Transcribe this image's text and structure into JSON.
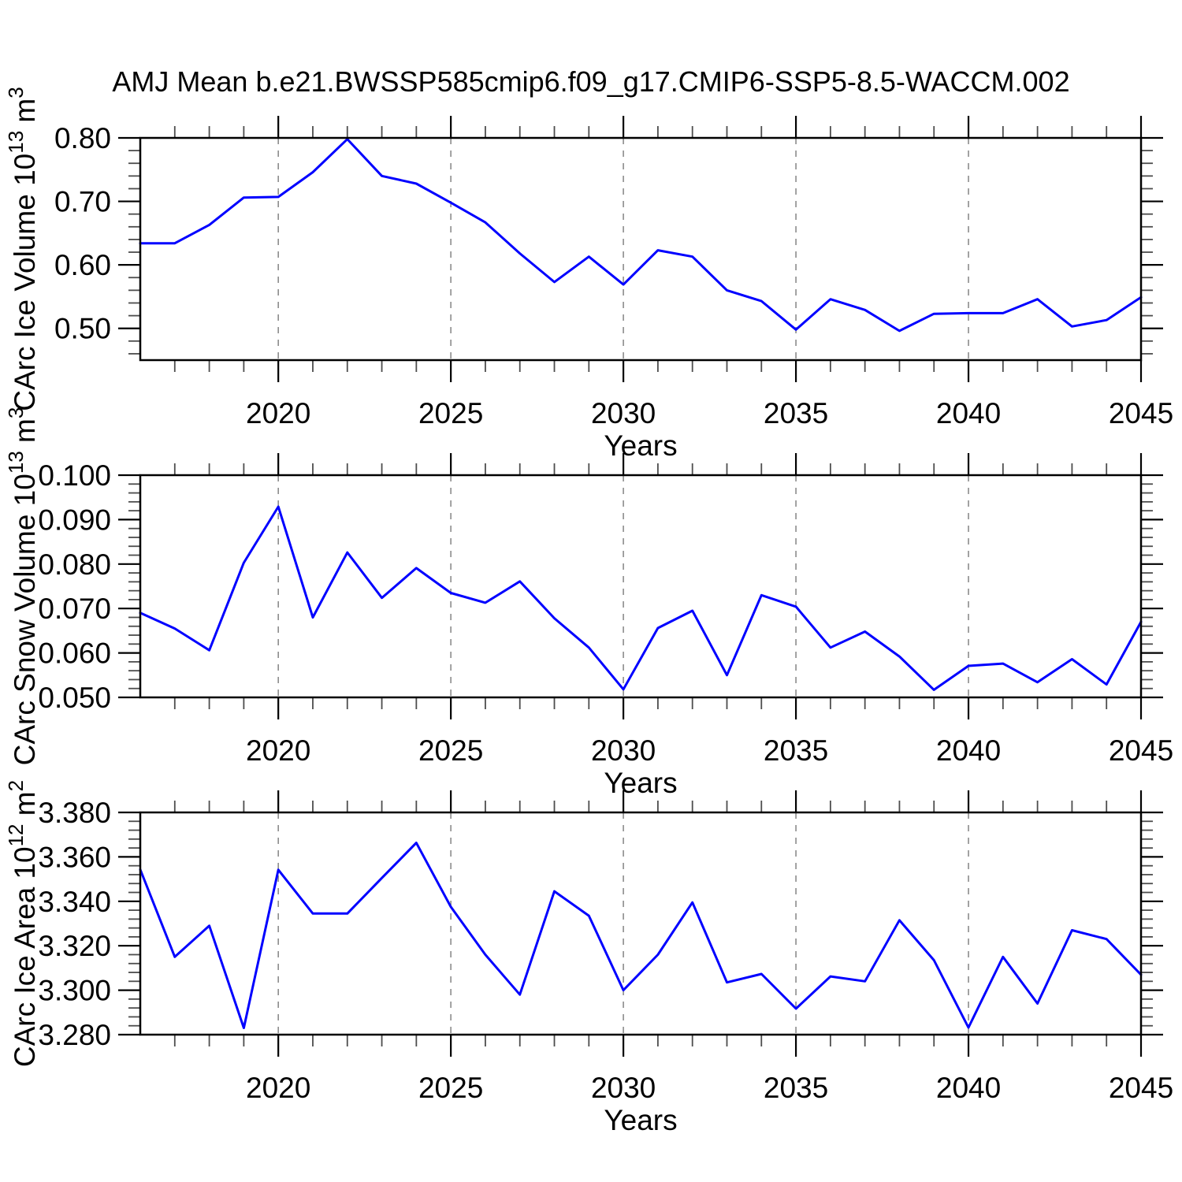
{
  "figure": {
    "title": "AMJ Mean b.e21.BWSSP585cmip6.f09_g17.CMIP6-SSP5-8.5-WACCM.002",
    "background_color": "#ffffff",
    "line_color": "#0000ff",
    "frame_color": "#000000",
    "major_tick_color": "#000000",
    "minor_tick_color": "#4d4d4d",
    "grid_color": "#8c8c8c",
    "text_color": "#000000"
  },
  "years": [
    2016,
    2017,
    2018,
    2019,
    2020,
    2021,
    2022,
    2023,
    2024,
    2025,
    2026,
    2027,
    2028,
    2029,
    2030,
    2031,
    2032,
    2033,
    2034,
    2035,
    2036,
    2037,
    2038,
    2039,
    2040,
    2041,
    2042,
    2043,
    2044,
    2045
  ],
  "chart_data": [
    {
      "type": "line",
      "name": "carc-ice-volume",
      "ylabel": "CArc Ice Volume 10^13 m^3",
      "ylabel_parts": [
        {
          "t": "CArc Ice Volume 10"
        },
        {
          "t": "13",
          "sup": true
        },
        {
          "t": " m"
        },
        {
          "t": "3",
          "sup": true
        }
      ],
      "xlabel": "Years",
      "values": [
        0.634,
        0.634,
        0.663,
        0.706,
        0.707,
        0.746,
        0.798,
        0.74,
        0.728,
        0.698,
        0.667,
        0.618,
        0.573,
        0.613,
        0.569,
        0.623,
        0.613,
        0.56,
        0.543,
        0.498,
        0.546,
        0.529,
        0.496,
        0.523,
        0.524,
        0.524,
        0.546,
        0.503,
        0.513,
        0.549
      ],
      "xlim": [
        2016,
        2045
      ],
      "ylim": [
        0.45,
        0.8
      ],
      "y_major_step": 0.1,
      "y_minor_step": 0.02,
      "x_minor_step": 1,
      "grid_x": [
        2020,
        2025,
        2030,
        2035,
        2040
      ],
      "grid_dashed": true,
      "legend": "none",
      "ytick_labels": [
        {
          "v": 0.5,
          "t": "0.50"
        },
        {
          "v": 0.6,
          "t": "0.60"
        },
        {
          "v": 0.7,
          "t": "0.70"
        },
        {
          "v": 0.8,
          "t": "0.80"
        }
      ],
      "xtick_labels": [
        {
          "v": 2020,
          "t": "2020"
        },
        {
          "v": 2025,
          "t": "2025"
        },
        {
          "v": 2030,
          "t": "2030"
        },
        {
          "v": 2035,
          "t": "2035"
        },
        {
          "v": 2040,
          "t": "2040"
        },
        {
          "v": 2045,
          "t": "2045"
        }
      ]
    },
    {
      "type": "line",
      "name": "carc-snow-volume",
      "ylabel": "CArc Snow Volume 10^13 m^3",
      "ylabel_parts": [
        {
          "t": "CArc Snow Volume 10"
        },
        {
          "t": "13",
          "sup": true
        },
        {
          "t": " m"
        },
        {
          "t": "3",
          "sup": true
        }
      ],
      "xlabel": "Years",
      "values": [
        0.069,
        0.0655,
        0.0606,
        0.0803,
        0.0929,
        0.068,
        0.0826,
        0.0724,
        0.0791,
        0.0735,
        0.0713,
        0.0761,
        0.0678,
        0.0612,
        0.0518,
        0.0656,
        0.0695,
        0.055,
        0.073,
        0.0704,
        0.0612,
        0.0648,
        0.0592,
        0.0517,
        0.0571,
        0.0576,
        0.0534,
        0.0586,
        0.0529,
        0.067
      ],
      "xlim": [
        2016,
        2045
      ],
      "ylim": [
        0.05,
        0.1
      ],
      "y_major_step": 0.01,
      "y_minor_step": 0.002,
      "x_minor_step": 1,
      "grid_x": [
        2020,
        2025,
        2030,
        2035,
        2040
      ],
      "grid_dashed": true,
      "legend": "none",
      "ytick_labels": [
        {
          "v": 0.05,
          "t": "0.050"
        },
        {
          "v": 0.06,
          "t": "0.060"
        },
        {
          "v": 0.07,
          "t": "0.070"
        },
        {
          "v": 0.08,
          "t": "0.080"
        },
        {
          "v": 0.09,
          "t": "0.090"
        },
        {
          "v": 0.1,
          "t": "0.100"
        }
      ],
      "xtick_labels": [
        {
          "v": 2020,
          "t": "2020"
        },
        {
          "v": 2025,
          "t": "2025"
        },
        {
          "v": 2030,
          "t": "2030"
        },
        {
          "v": 2035,
          "t": "2035"
        },
        {
          "v": 2040,
          "t": "2040"
        },
        {
          "v": 2045,
          "t": "2045"
        }
      ]
    },
    {
      "type": "line",
      "name": "carc-ice-area",
      "ylabel": "CArc Ice Area 10^12 m^2",
      "ylabel_parts": [
        {
          "t": "CArc Ice Area 10"
        },
        {
          "t": "12",
          "sup": true
        },
        {
          "t": " m"
        },
        {
          "t": "2",
          "sup": true
        }
      ],
      "xlabel": "Years",
      "values": [
        3.3543,
        3.315,
        3.329,
        3.283,
        3.3542,
        3.3345,
        3.3345,
        3.3505,
        3.3663,
        3.3375,
        3.316,
        3.298,
        3.3445,
        3.3335,
        3.3,
        3.316,
        3.3395,
        3.3035,
        3.3073,
        3.2917,
        3.3062,
        3.304,
        3.3315,
        3.3135,
        3.2832,
        3.315,
        3.294,
        3.327,
        3.323,
        3.307
      ],
      "xlim": [
        2016,
        2045
      ],
      "ylim": [
        3.28,
        3.38
      ],
      "y_major_step": 0.02,
      "y_minor_step": 0.004,
      "x_minor_step": 1,
      "grid_x": [
        2020,
        2025,
        2030,
        2035,
        2040
      ],
      "grid_dashed": true,
      "legend": "none",
      "ytick_labels": [
        {
          "v": 3.28,
          "t": "3.280"
        },
        {
          "v": 3.3,
          "t": "3.300"
        },
        {
          "v": 3.32,
          "t": "3.320"
        },
        {
          "v": 3.34,
          "t": "3.340"
        },
        {
          "v": 3.36,
          "t": "3.360"
        },
        {
          "v": 3.38,
          "t": "3.380"
        }
      ],
      "xtick_labels": [
        {
          "v": 2020,
          "t": "2020"
        },
        {
          "v": 2025,
          "t": "2025"
        },
        {
          "v": 2030,
          "t": "2030"
        },
        {
          "v": 2035,
          "t": "2035"
        },
        {
          "v": 2040,
          "t": "2040"
        },
        {
          "v": 2045,
          "t": "2045"
        }
      ]
    }
  ]
}
